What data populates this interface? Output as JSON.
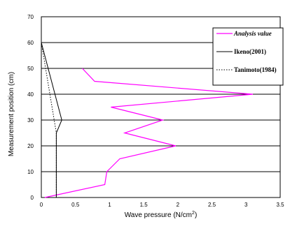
{
  "chart_data": {
    "type": "line",
    "xlabel": "Wave pressure (N/cm",
    "xlabel_sup": "2",
    "xlabel_end": ")",
    "ylabel": "Measurement position (cm)",
    "xlim": [
      0,
      3.5
    ],
    "ylim": [
      0,
      70
    ],
    "x_ticks": [
      "0",
      "0.5",
      "1",
      "1.5",
      "2",
      "2.5",
      "3",
      "3.5"
    ],
    "y_ticks": [
      "0",
      "10",
      "20",
      "30",
      "40",
      "50",
      "60",
      "70"
    ],
    "grid": "horizontal",
    "legend_placement": "top-right",
    "series": [
      {
        "name": "Analysis value",
        "color": "#ff00ff",
        "style": "solid",
        "points": [
          [
            0.05,
            0
          ],
          [
            0.93,
            5
          ],
          [
            0.96,
            10
          ],
          [
            1.15,
            15
          ],
          [
            1.97,
            20
          ],
          [
            1.22,
            25
          ],
          [
            1.78,
            30
          ],
          [
            1.02,
            35
          ],
          [
            3.1,
            40
          ],
          [
            0.78,
            45
          ],
          [
            0.6,
            50
          ]
        ]
      },
      {
        "name": "Ikeno(2001)",
        "color": "#000000",
        "style": "solid",
        "points": [
          [
            0.22,
            0
          ],
          [
            0.22,
            25
          ],
          [
            0.3,
            30
          ],
          [
            0.0,
            60
          ]
        ]
      },
      {
        "name": "Tanimoto(1984)",
        "color": "#000000",
        "style": "dotted",
        "points": [
          [
            0.22,
            0
          ],
          [
            0.22,
            25
          ],
          [
            0.0,
            60
          ]
        ]
      }
    ]
  }
}
